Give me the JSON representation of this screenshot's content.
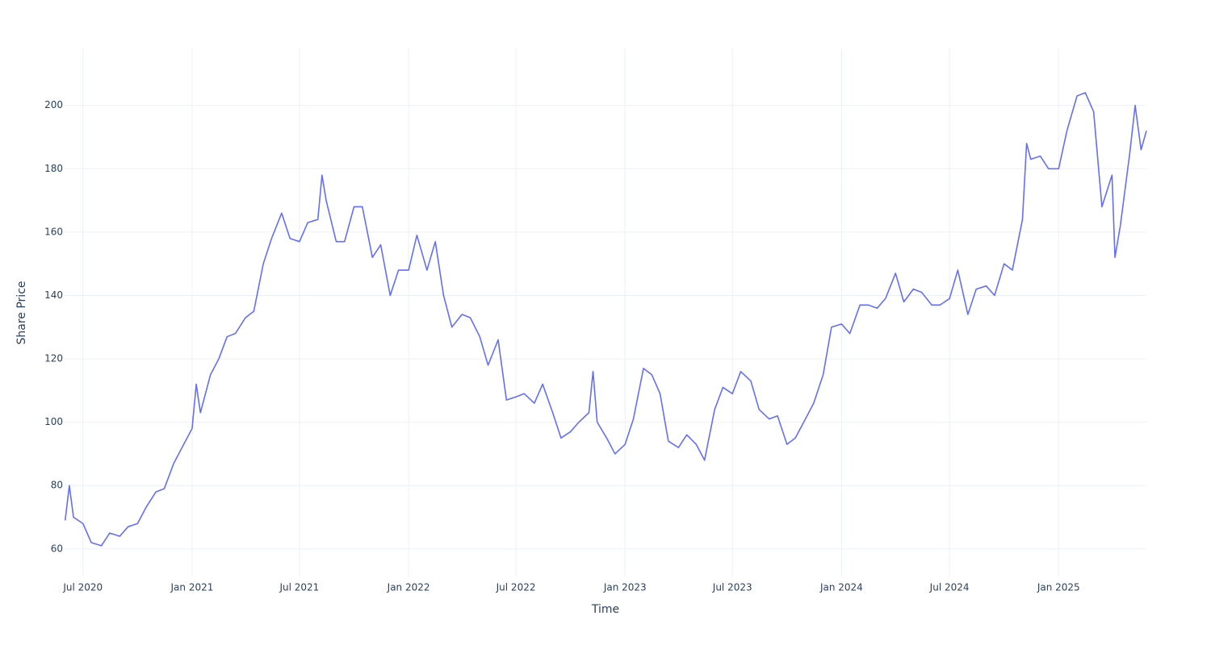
{
  "chart_data": {
    "type": "line",
    "x_label": "Time",
    "y_label": "Share Price",
    "color": "#636efa",
    "x": [
      "2020-06-01",
      "2020-06-08",
      "2020-06-15",
      "2020-07-01",
      "2020-07-15",
      "2020-08-01",
      "2020-08-15",
      "2020-09-01",
      "2020-09-15",
      "2020-10-01",
      "2020-10-15",
      "2020-11-01",
      "2020-11-15",
      "2020-12-01",
      "2020-12-15",
      "2021-01-01",
      "2021-01-08",
      "2021-01-15",
      "2021-02-01",
      "2021-02-15",
      "2021-03-01",
      "2021-03-15",
      "2021-04-01",
      "2021-04-15",
      "2021-05-01",
      "2021-05-15",
      "2021-06-01",
      "2021-06-15",
      "2021-07-01",
      "2021-07-15",
      "2021-08-01",
      "2021-08-08",
      "2021-08-15",
      "2021-09-01",
      "2021-09-15",
      "2021-10-01",
      "2021-10-15",
      "2021-11-01",
      "2021-11-15",
      "2021-12-01",
      "2021-12-15",
      "2022-01-01",
      "2022-01-15",
      "2022-02-01",
      "2022-02-15",
      "2022-03-01",
      "2022-03-15",
      "2022-04-01",
      "2022-04-15",
      "2022-05-01",
      "2022-05-15",
      "2022-06-01",
      "2022-06-15",
      "2022-07-01",
      "2022-07-15",
      "2022-08-01",
      "2022-08-15",
      "2022-09-01",
      "2022-09-15",
      "2022-10-01",
      "2022-10-15",
      "2022-11-01",
      "2022-11-08",
      "2022-11-15",
      "2022-12-01",
      "2022-12-15",
      "2023-01-01",
      "2023-01-15",
      "2023-02-01",
      "2023-02-15",
      "2023-03-01",
      "2023-03-15",
      "2023-04-01",
      "2023-04-15",
      "2023-05-01",
      "2023-05-15",
      "2023-06-01",
      "2023-06-15",
      "2023-07-01",
      "2023-07-15",
      "2023-08-01",
      "2023-08-15",
      "2023-09-01",
      "2023-09-15",
      "2023-10-01",
      "2023-10-15",
      "2023-11-01",
      "2023-11-15",
      "2023-12-01",
      "2023-12-15",
      "2024-01-01",
      "2024-01-15",
      "2024-02-01",
      "2024-02-15",
      "2024-03-01",
      "2024-03-15",
      "2024-04-01",
      "2024-04-15",
      "2024-05-01",
      "2024-05-15",
      "2024-06-01",
      "2024-06-15",
      "2024-07-01",
      "2024-07-15",
      "2024-08-01",
      "2024-08-15",
      "2024-09-01",
      "2024-09-15",
      "2024-10-01",
      "2024-10-15",
      "2024-11-01",
      "2024-11-08",
      "2024-11-15",
      "2024-12-01",
      "2024-12-15",
      "2025-01-01",
      "2025-01-15",
      "2025-02-01",
      "2025-02-15",
      "2025-03-01",
      "2025-03-15",
      "2025-04-01",
      "2025-04-06",
      "2025-04-15",
      "2025-05-01",
      "2025-05-10",
      "2025-05-20",
      "2025-05-29"
    ],
    "values": [
      69,
      80,
      70,
      68,
      62,
      61,
      65,
      64,
      67,
      68,
      73,
      78,
      79,
      87,
      92,
      98,
      112,
      103,
      115,
      120,
      127,
      128,
      133,
      135,
      150,
      158,
      166,
      158,
      157,
      163,
      164,
      178,
      170,
      157,
      157,
      168,
      168,
      152,
      156,
      140,
      148,
      148,
      159,
      148,
      157,
      140,
      130,
      134,
      133,
      127,
      118,
      126,
      107,
      108,
      109,
      106,
      112,
      103,
      95,
      97,
      100,
      103,
      116,
      100,
      95,
      90,
      93,
      101,
      117,
      115,
      109,
      94,
      92,
      96,
      93,
      88,
      104,
      111,
      109,
      116,
      113,
      104,
      101,
      102,
      93,
      95,
      101,
      106,
      115,
      130,
      131,
      128,
      137,
      137,
      136,
      139,
      147,
      138,
      142,
      141,
      137,
      137,
      139,
      148,
      134,
      142,
      143,
      140,
      150,
      148,
      164,
      188,
      183,
      184,
      180,
      180,
      192,
      203,
      204,
      198,
      168,
      178,
      152,
      162,
      185,
      200,
      186,
      192
    ],
    "xlim": [
      "2020-05-31",
      "2025-05-29"
    ],
    "ylim": [
      51.3,
      218
    ],
    "xticks": [
      {
        "value": "2020-07-01",
        "label": "Jul 2020"
      },
      {
        "value": "2021-01-01",
        "label": "Jan 2021"
      },
      {
        "value": "2021-07-01",
        "label": "Jul 2021"
      },
      {
        "value": "2022-01-01",
        "label": "Jan 2022"
      },
      {
        "value": "2022-07-01",
        "label": "Jul 2022"
      },
      {
        "value": "2023-01-01",
        "label": "Jan 2023"
      },
      {
        "value": "2023-07-01",
        "label": "Jul 2023"
      },
      {
        "value": "2024-01-01",
        "label": "Jan 2024"
      },
      {
        "value": "2024-07-01",
        "label": "Jul 2024"
      },
      {
        "value": "2025-01-01",
        "label": "Jan 2025"
      }
    ],
    "yticks": [
      60,
      80,
      100,
      120,
      140,
      160,
      180,
      200
    ],
    "grid": true
  }
}
